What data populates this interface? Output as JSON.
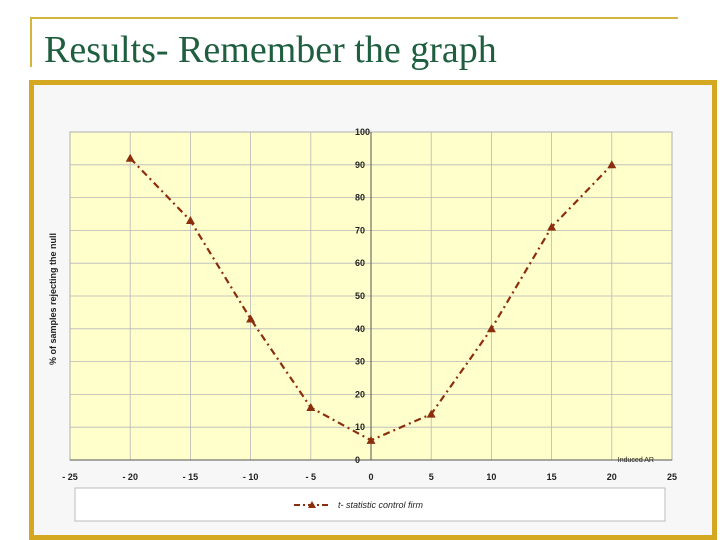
{
  "slide": {
    "title": "Results- Remember the graph"
  },
  "colors": {
    "title": "#1f5f3f",
    "frame": "#d4b63c",
    "panel_border": "#d4a820",
    "plot_bg": "#ffffcc",
    "series": "#8b2e0e"
  },
  "chart_data": {
    "type": "line",
    "title": "",
    "xlabel": "Induced AR",
    "ylabel": "% of samples rejecting the null",
    "xlim": [
      -25,
      25
    ],
    "ylim": [
      0,
      100
    ],
    "x_ticks": [
      "- 25",
      "- 20",
      "- 15",
      "- 10",
      "- 5",
      "0",
      "5",
      "10",
      "15",
      "20",
      "25"
    ],
    "y_ticks": [
      "0",
      "10",
      "20",
      "30",
      "40",
      "50",
      "60",
      "70",
      "80",
      "90",
      "100"
    ],
    "grid": true,
    "legend_position": "bottom",
    "series": [
      {
        "name": "t- statistic control firm",
        "x": [
          -20,
          -15,
          -10,
          -5,
          0,
          5,
          10,
          15,
          20
        ],
        "values": [
          92,
          73,
          43,
          16,
          6,
          14,
          40,
          71,
          90
        ]
      }
    ]
  }
}
